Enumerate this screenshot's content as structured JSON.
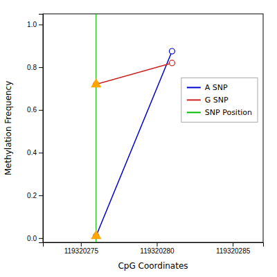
{
  "chart_data": {
    "type": "line",
    "x_label": "CpG Coordinates",
    "y_label": "Methylation Frequency",
    "series": [
      {
        "name": "A SNP",
        "color": "#0000CC",
        "marker": "circle",
        "x": [
          119320276,
          119320281
        ],
        "values": [
          0.01,
          0.875
        ]
      },
      {
        "name": "G SNP",
        "color": "#CC2222",
        "marker": "circle",
        "x": [
          119320276,
          119320281
        ],
        "values": [
          0.72,
          0.82
        ]
      },
      {
        "name": "SNP Position",
        "type": "vline",
        "color": "#00BB00",
        "x": [
          119320276
        ]
      }
    ],
    "highlight_points": {
      "marker": "triangle",
      "color": "#FFA500",
      "x": [
        119320276,
        119320276
      ],
      "values": [
        0.01,
        0.72
      ]
    },
    "xlim": [
      119320272.5,
      119320287
    ],
    "ylim": [
      -0.02,
      1.05
    ],
    "xticks": [
      119320275,
      119320280,
      119320285
    ],
    "yticks": [
      {
        "value": 0.0,
        "label": "0.0"
      },
      0.2,
      0.4,
      0.6,
      0.8,
      {
        "value": 1.0,
        "label": "1.0"
      }
    ],
    "grid": false,
    "legend": "right"
  }
}
